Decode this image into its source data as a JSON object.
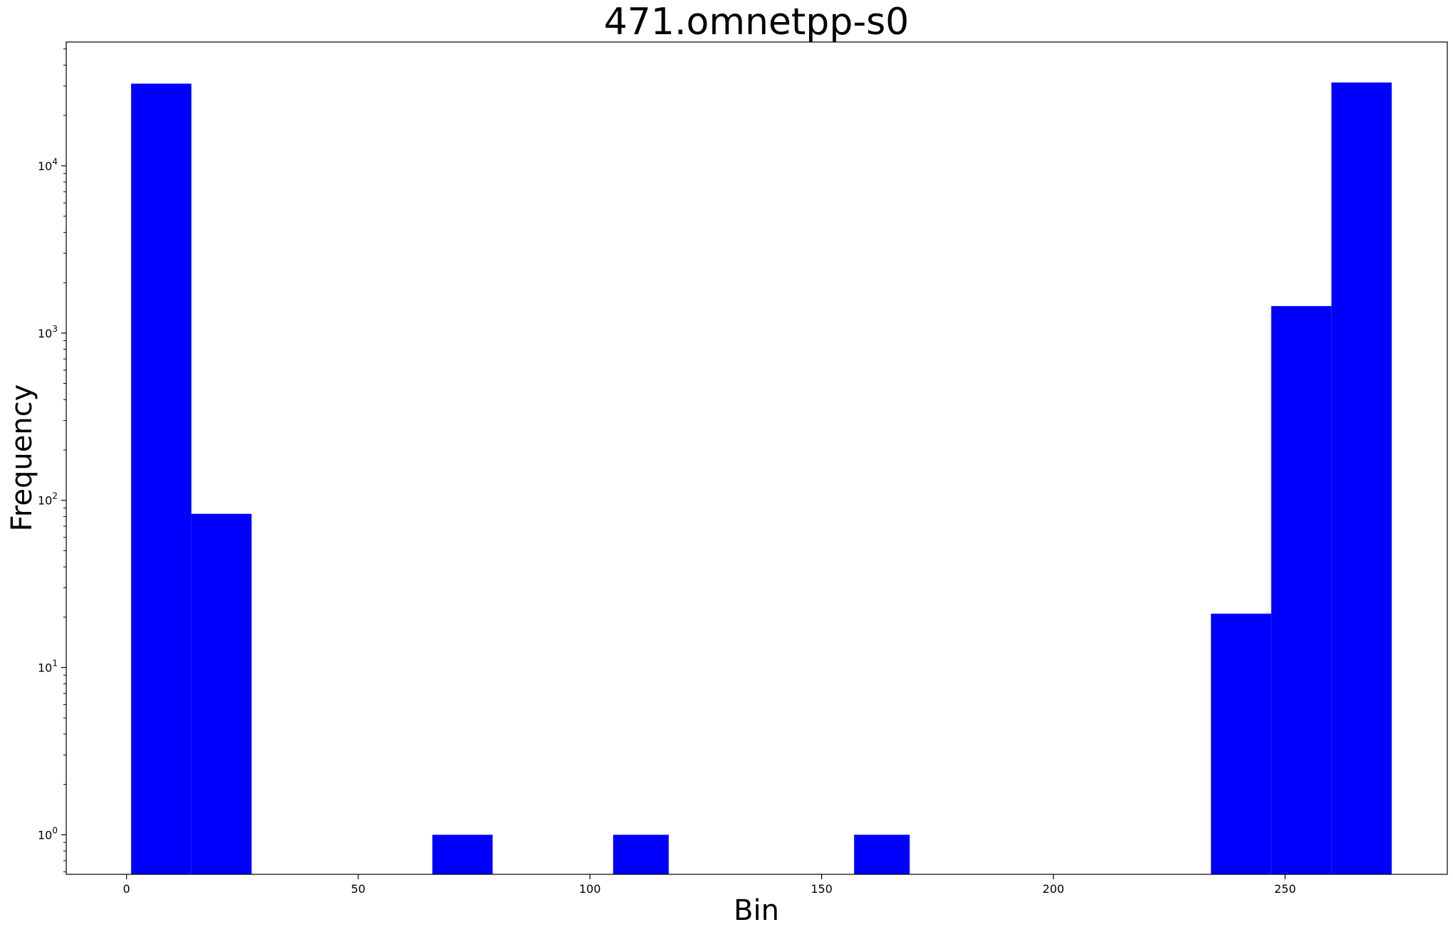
{
  "chart_data": {
    "type": "bar",
    "title": "471.omnetpp-s0",
    "xlabel": "Bin",
    "ylabel": "Frequency",
    "color": "#0000ff",
    "yscale": "log",
    "xlim": [
      -13,
      285
    ],
    "ylim": [
      0.58,
      55000
    ],
    "grid": false,
    "bins": [
      {
        "x0": 1,
        "x1": 14,
        "value": 31000
      },
      {
        "x0": 14,
        "x1": 27,
        "value": 83
      },
      {
        "x0": 66,
        "x1": 79,
        "value": 1
      },
      {
        "x0": 105,
        "x1": 117,
        "value": 1
      },
      {
        "x0": 157,
        "x1": 169,
        "value": 1
      },
      {
        "x0": 234,
        "x1": 247,
        "value": 21
      },
      {
        "x0": 247,
        "x1": 260,
        "value": 1450
      },
      {
        "x0": 260,
        "x1": 273,
        "value": 31500
      }
    ],
    "xticks": [
      {
        "value": 0,
        "label": "0"
      },
      {
        "value": 50,
        "label": "50"
      },
      {
        "value": 100,
        "label": "100"
      },
      {
        "value": 150,
        "label": "150"
      },
      {
        "value": 200,
        "label": "200"
      },
      {
        "value": 250,
        "label": "250"
      }
    ],
    "yticks": [
      {
        "value": 1,
        "base": "10",
        "exp": "0"
      },
      {
        "value": 10,
        "base": "10",
        "exp": "1"
      },
      {
        "value": 100,
        "base": "10",
        "exp": "2"
      },
      {
        "value": 1000,
        "base": "10",
        "exp": "3"
      },
      {
        "value": 10000,
        "base": "10",
        "exp": "4"
      }
    ]
  }
}
